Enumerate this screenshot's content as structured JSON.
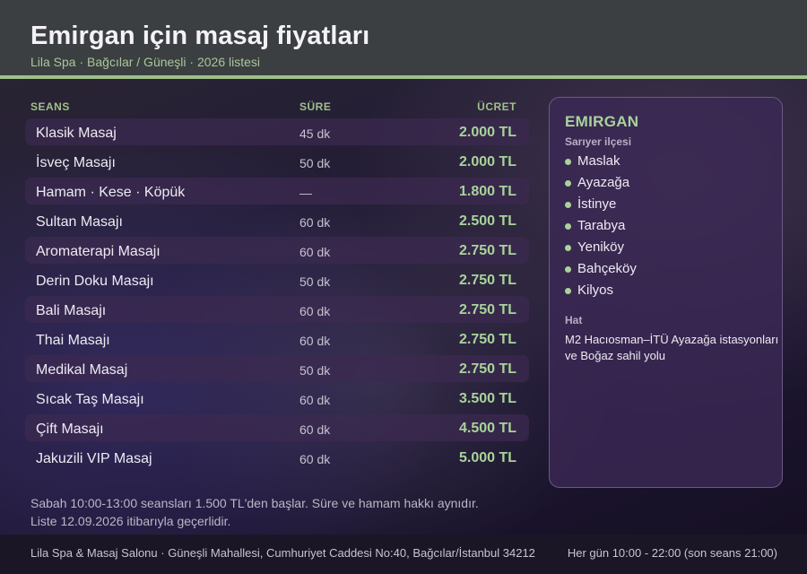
{
  "header": {
    "title": "Emirgan için masaj fiyatları",
    "subtitle": "Lila Spa · Bağcılar / Güneşli · 2026 listesi"
  },
  "table": {
    "columns": {
      "session": "SEANS",
      "duration": "SÜRE",
      "price": "ÜCRET"
    },
    "rows": [
      {
        "name": "Klasik Masaj",
        "duration": "45 dk",
        "price": "2.000 TL"
      },
      {
        "name": "İsveç Masajı",
        "duration": "50 dk",
        "price": "2.000 TL"
      },
      {
        "name": "Hamam · Kese · Köpük",
        "duration": "—",
        "price": "1.800 TL"
      },
      {
        "name": "Sultan Masajı",
        "duration": "60 dk",
        "price": "2.500 TL"
      },
      {
        "name": "Aromaterapi Masajı",
        "duration": "60 dk",
        "price": "2.750 TL"
      },
      {
        "name": "Derin Doku Masajı",
        "duration": "50 dk",
        "price": "2.750 TL"
      },
      {
        "name": "Bali Masajı",
        "duration": "60 dk",
        "price": "2.750 TL"
      },
      {
        "name": "Thai Masajı",
        "duration": "60 dk",
        "price": "2.750 TL"
      },
      {
        "name": "Medikal Masaj",
        "duration": "50 dk",
        "price": "2.750 TL"
      },
      {
        "name": "Sıcak Taş Masajı",
        "duration": "60 dk",
        "price": "3.500 TL"
      },
      {
        "name": "Çift Masajı",
        "duration": "60 dk",
        "price": "4.500 TL"
      },
      {
        "name": "Jakuzili VIP Masaj",
        "duration": "60 dk",
        "price": "5.000 TL"
      }
    ]
  },
  "notes": {
    "line1": "Sabah 10:00-13:00 seansları 1.500 TL'den başlar. Süre ve hamam hakkı aynıdır.",
    "line2": "Liste 12.09.2026 itibarıyla geçerlidir."
  },
  "side": {
    "title": "EMIRGAN",
    "district": "Sarıyer ilçesi",
    "places": [
      "Maslak",
      "Ayazağa",
      "İstinye",
      "Tarabya",
      "Yeniköy",
      "Bahçeköy",
      "Kilyos"
    ],
    "hat_label": "Hat",
    "hat_line1": "M2 Hacıosman–İTÜ Ayazağa istasyonları",
    "hat_line2": "ve Boğaz sahil yolu"
  },
  "footer": {
    "address": "Lila Spa & Masaj Salonu · Güneşli Mahallesi, Cumhuriyet Caddesi No:40, Bağcılar/İstanbul 34212",
    "hours": "Her gün 10:00 - 22:00 (son seans 21:00)"
  },
  "colors": {
    "accent": "#9fc08a",
    "price": "#a9d39a",
    "header_bg": "#3b3f41",
    "panel_bg": "#3a2854"
  }
}
